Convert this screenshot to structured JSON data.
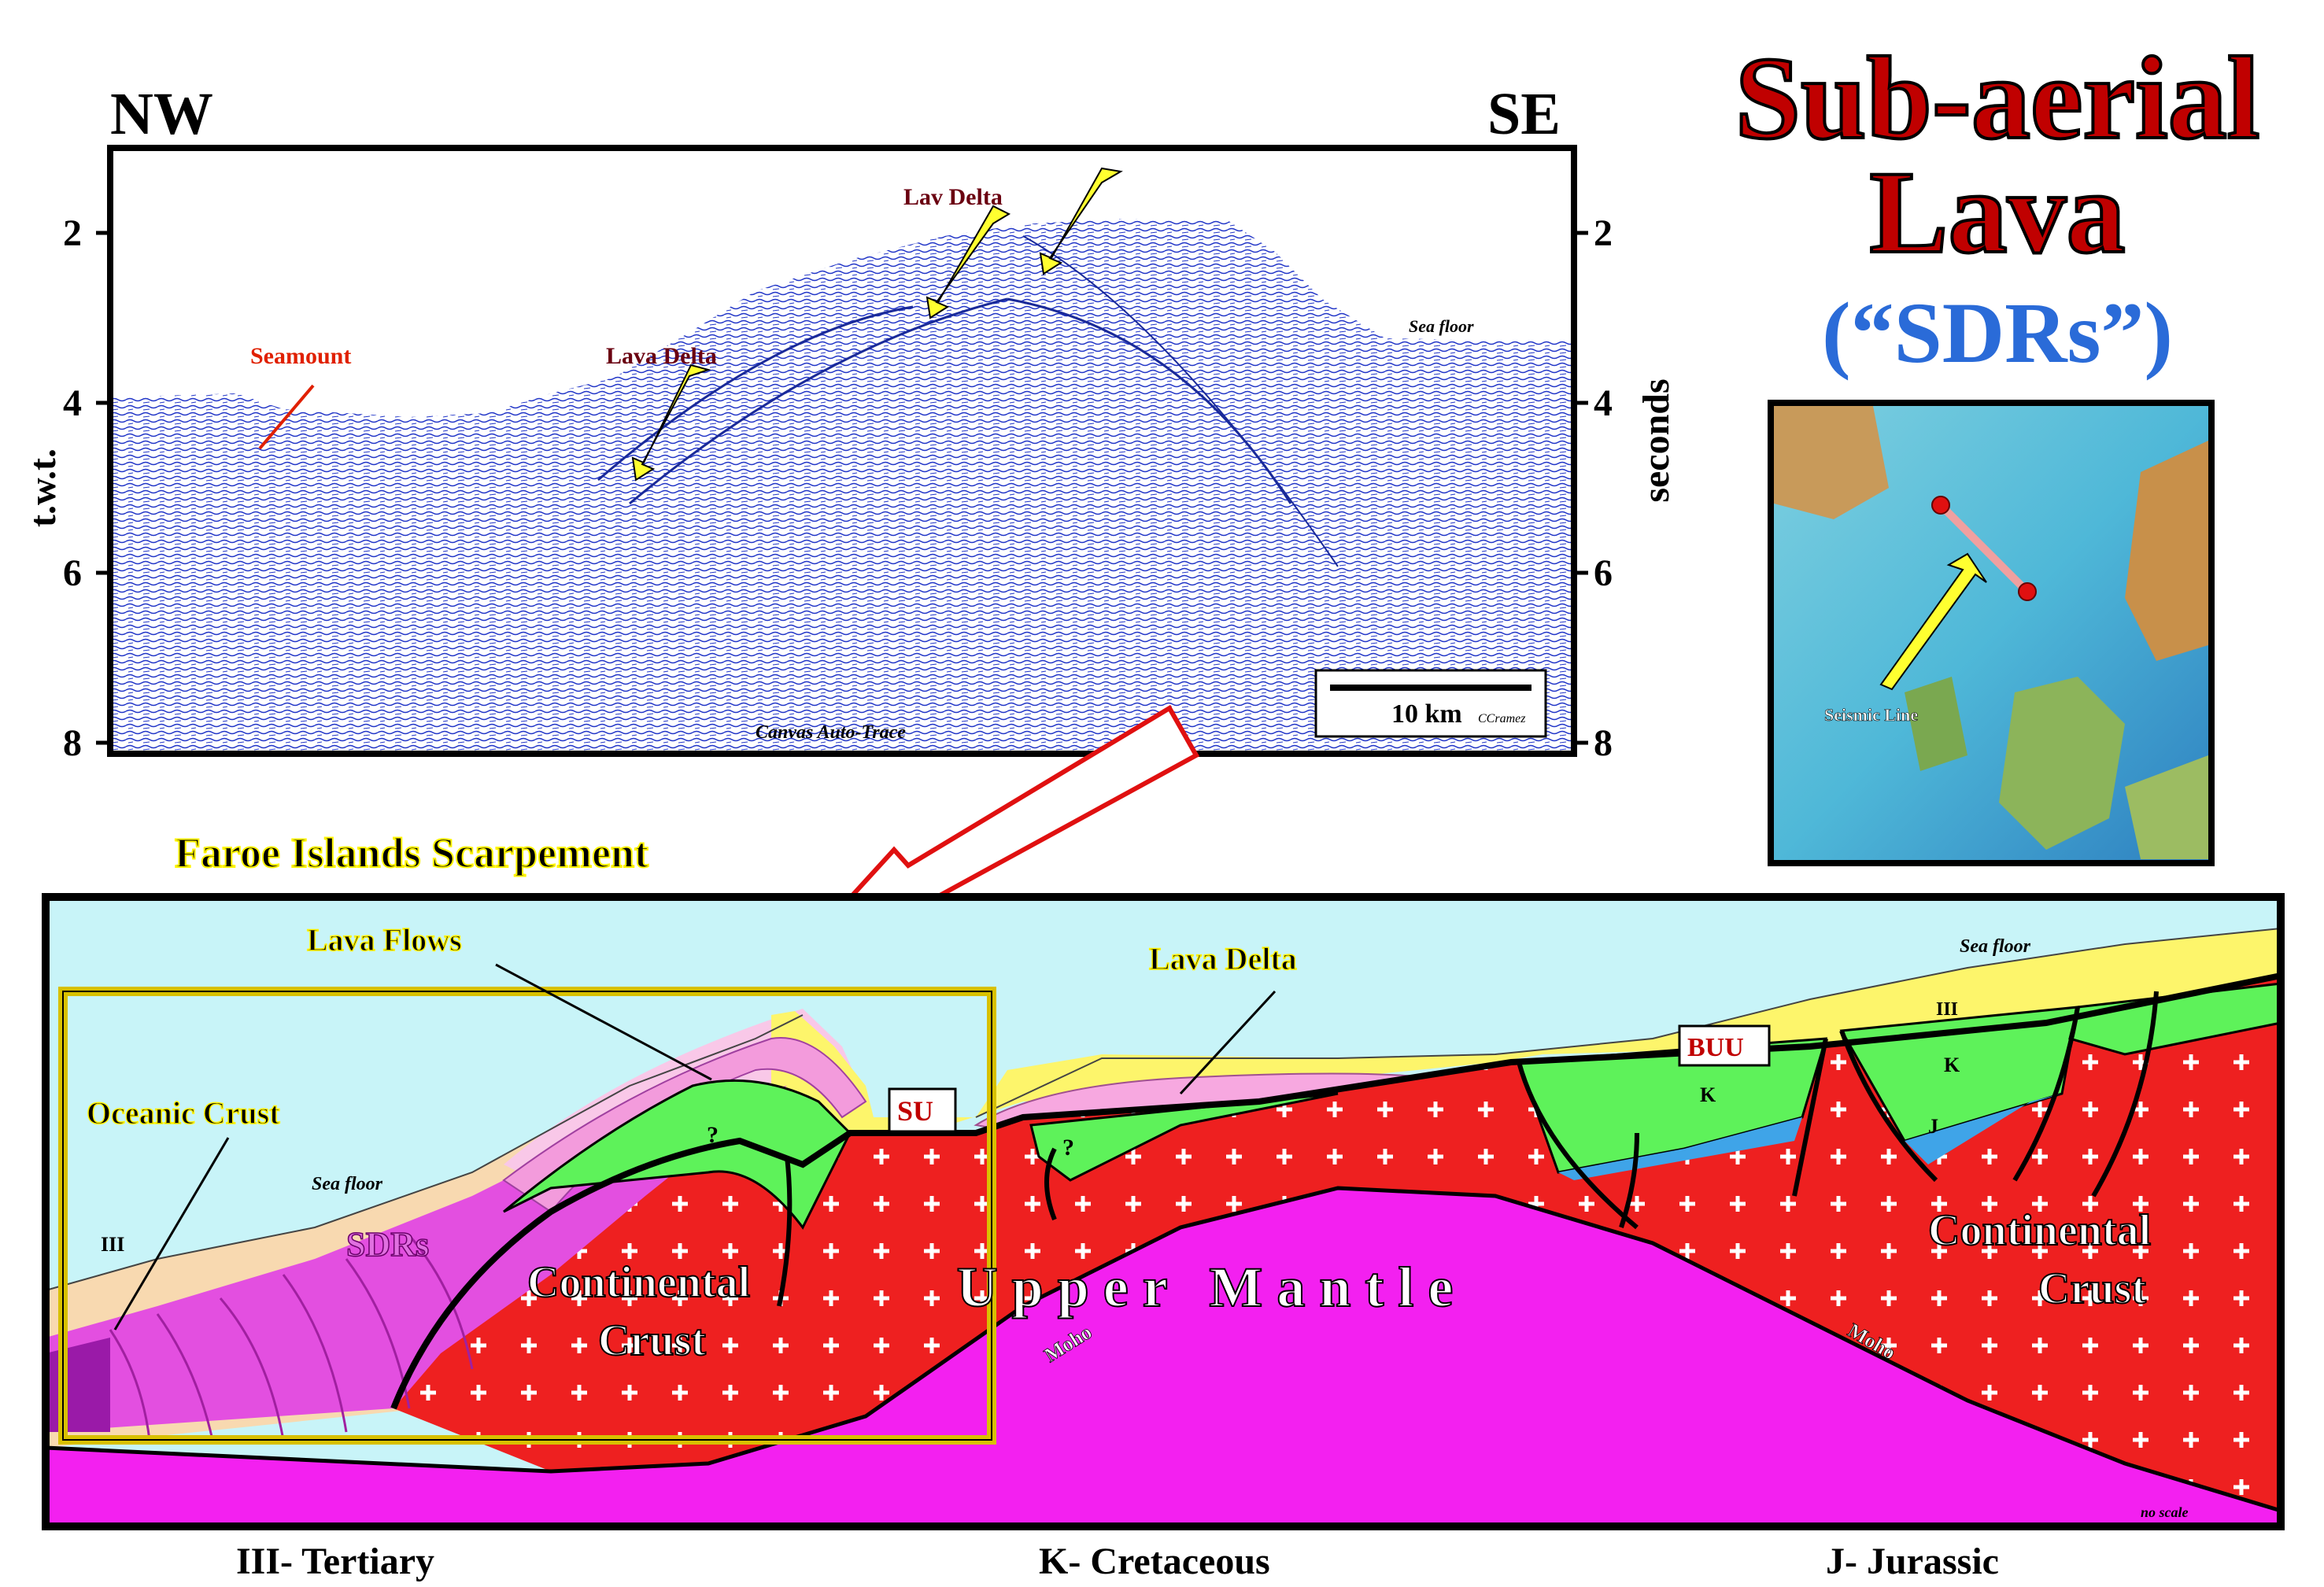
{
  "colors": {
    "title_red": "#c00000",
    "title_blue": "#2a6bd8",
    "sea": "#c8f4f8",
    "sea_sediment": "#f8d9b0",
    "lava_yellow": "#fdf56b",
    "lava_pink": "#f39bdc",
    "sdr_magenta": "#e34fe0",
    "green_basin": "#5ef25a",
    "jurassic_blue": "#3fa4e8",
    "crust_red": "#ee2020",
    "mantle_magenta": "#f320f0",
    "seismic_blue": "#2236c8",
    "frame_gold": "#d8c000"
  },
  "title": {
    "line1": "Sub-aerial",
    "line2": "Lava",
    "line3": "(“SDRs”)"
  },
  "seismic": {
    "left_dir": "NW",
    "right_dir": "SE",
    "left_axis_label": "t.w.t.",
    "right_axis_label": "seconds",
    "ticks": [
      "2",
      "4",
      "6",
      "8"
    ],
    "labels": {
      "seamount": "Seamount",
      "lava_delta": "Lava Delta",
      "lav_delta": "Lav Delta",
      "sea_floor": "Sea floor",
      "canvas": "Canvas Auto-Trace",
      "scale": "10 km",
      "author": "CCramez"
    }
  },
  "map": {
    "label": "Seismic Line"
  },
  "section": {
    "scarpement_title": "Faroe Islands Scarpement",
    "lava_flows": "Lava Flows",
    "lava_delta": "Lava Delta",
    "oceanic_crust": "Oceanic Crust",
    "sea_floor_left": "Sea floor",
    "sea_floor_right": "Sea floor",
    "sdrs": "SDRs",
    "su": "SU",
    "buu": "BUU",
    "continental_crust_left_1": "Continental",
    "continental_crust_left_2": "Crust",
    "continental_crust_right_1": "Continental",
    "continental_crust_right_2": "Crust",
    "upper_mantle": "Upper Mantle",
    "moho_left": "Moho",
    "moho_right": "Moho",
    "iii_left": "III",
    "iii_right": "III",
    "k_1": "K",
    "k_2": "K",
    "j": "J",
    "q_1": "?",
    "q_2": "?",
    "no_scale": "no scale"
  },
  "legend": {
    "tertiary": "III- Tertiary",
    "cretaceous": "K- Cretaceous",
    "jurassic": "J- Jurassic"
  }
}
